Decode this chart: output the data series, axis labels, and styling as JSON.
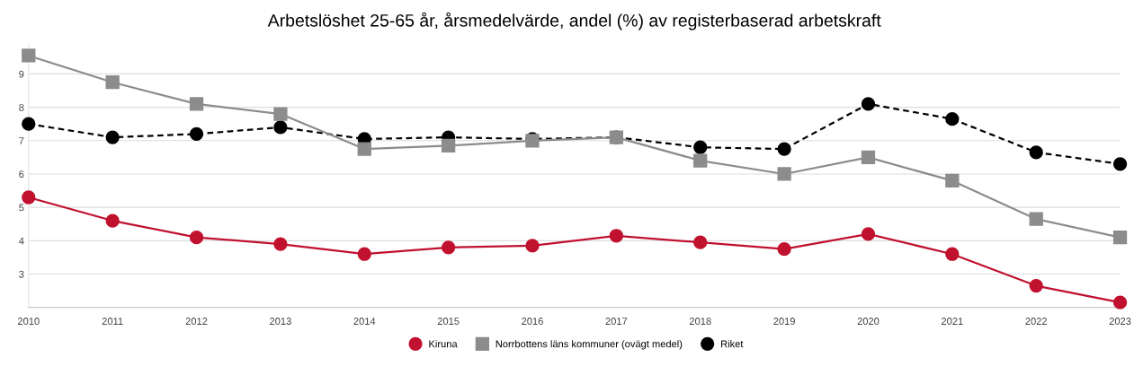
{
  "chart_data": {
    "type": "line",
    "title": "Arbetslöshet 25-65 år, årsmedelvärde, andel (%) av registerbaserad arbetskraft",
    "categories": [
      "2010",
      "2011",
      "2012",
      "2013",
      "2014",
      "2015",
      "2016",
      "2017",
      "2018",
      "2019",
      "2020",
      "2021",
      "2022",
      "2023"
    ],
    "series": [
      {
        "name": "Kiruna",
        "color": "#c0112f",
        "marker": "circle",
        "line_style": "solid",
        "values": [
          5.3,
          4.6,
          4.1,
          3.9,
          3.6,
          3.8,
          3.85,
          4.15,
          3.95,
          3.75,
          4.2,
          3.6,
          2.65,
          2.15
        ]
      },
      {
        "name": "Norrbottens läns kommuner (ovägt medel)",
        "color": "#8c8c8c",
        "marker": "square",
        "line_style": "solid",
        "values": [
          9.55,
          8.75,
          8.1,
          7.8,
          6.75,
          6.85,
          7.0,
          7.1,
          6.4,
          6.0,
          6.5,
          5.8,
          4.65,
          4.1
        ]
      },
      {
        "name": "Riket",
        "color": "#000000",
        "marker": "circle",
        "line_style": "dashed",
        "values": [
          7.5,
          7.1,
          7.2,
          7.4,
          7.05,
          7.1,
          7.05,
          7.1,
          6.8,
          6.75,
          8.1,
          7.65,
          6.65,
          6.3
        ]
      }
    ],
    "ylim": [
      2,
      9.9
    ],
    "yticks": [
      3,
      4,
      5,
      6,
      7,
      8,
      9
    ],
    "grid": "y",
    "legend": "bottom"
  }
}
